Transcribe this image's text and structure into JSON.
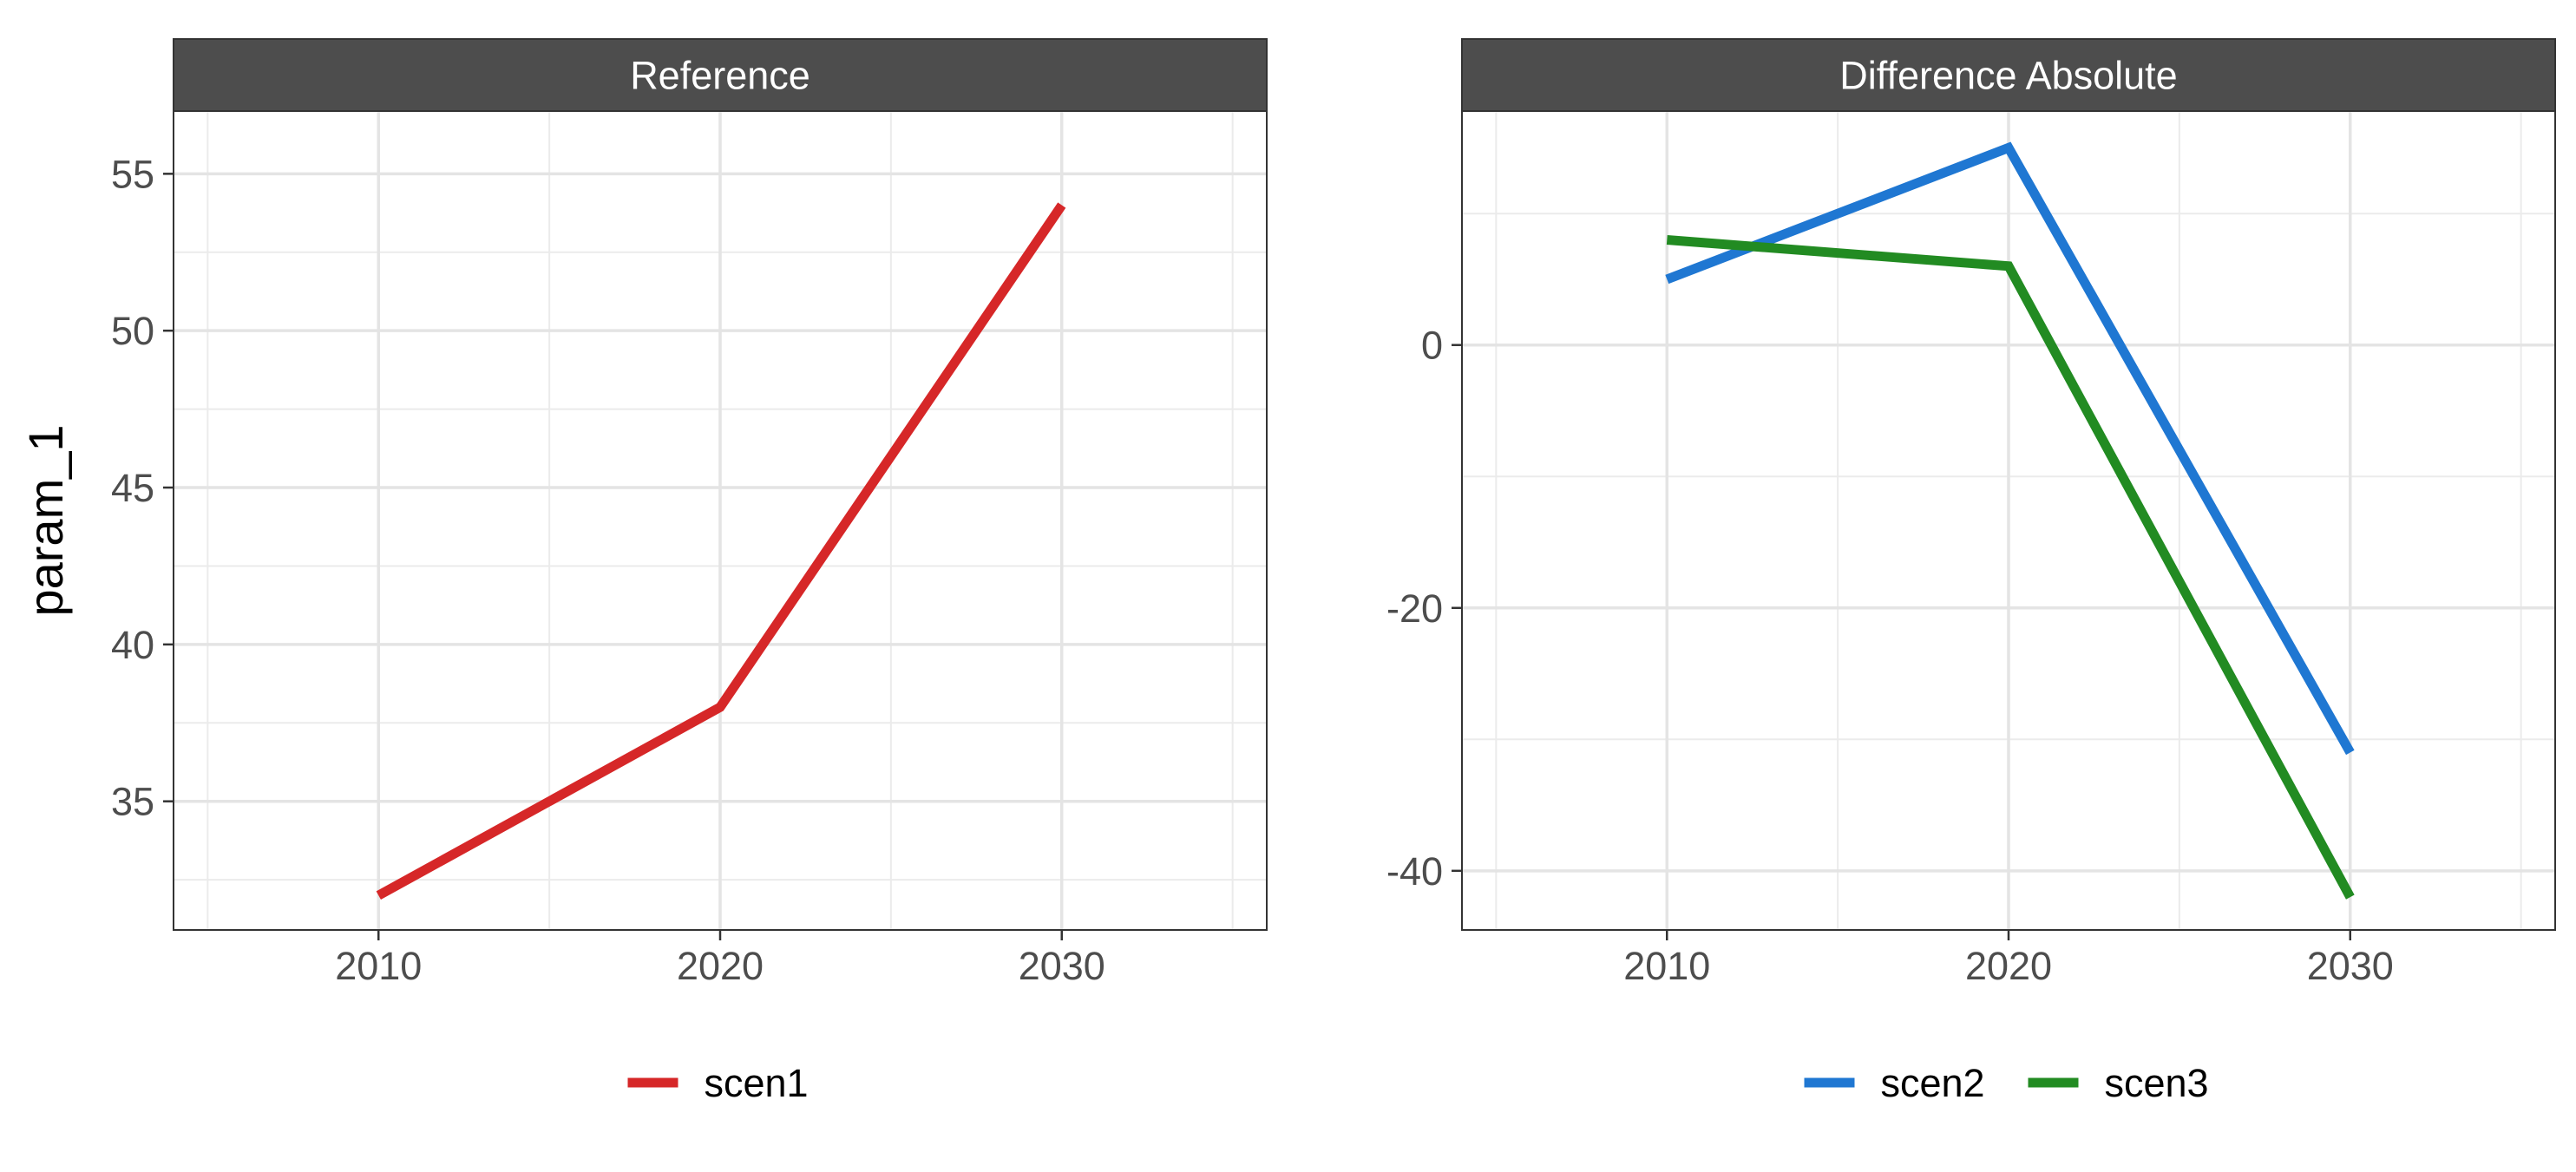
{
  "chart_data": {
    "type": "line",
    "ylabel": "param_1",
    "panels": [
      {
        "title": "Reference",
        "x": [
          2010,
          2020,
          2030
        ],
        "xlim": [
          2004,
          2036
        ],
        "ylim": [
          30.9,
          57.0
        ],
        "yticks": [
          35,
          40,
          45,
          50,
          55
        ],
        "ytick_labels": [
          "35",
          "40",
          "45",
          "50",
          "55"
        ],
        "xticks": [
          2010,
          2020,
          2030
        ],
        "xtick_labels": [
          "2010",
          "2020",
          "2030"
        ],
        "grid": true,
        "series": [
          {
            "name": "scen1",
            "color": "#d62728",
            "values": [
              32,
              38,
              54
            ]
          }
        ],
        "legend": {
          "position": "bottom",
          "entries": [
            "scen1"
          ]
        }
      },
      {
        "title": "Difference Absolute",
        "x": [
          2010,
          2020,
          2030
        ],
        "xlim": [
          2004,
          2036
        ],
        "ylim": [
          -44.5,
          17.8
        ],
        "yticks": [
          -40,
          -20,
          0
        ],
        "ytick_labels": [
          "-40",
          "-20",
          "0"
        ],
        "xticks": [
          2010,
          2020,
          2030
        ],
        "xtick_labels": [
          "2010",
          "2020",
          "2030"
        ],
        "grid": true,
        "series": [
          {
            "name": "scen2",
            "color": "#1f77d2",
            "values": [
              5,
              15,
              -31
            ]
          },
          {
            "name": "scen3",
            "color": "#228b22",
            "values": [
              8,
              6,
              -42
            ]
          }
        ],
        "legend": {
          "position": "bottom",
          "entries": [
            "scen2",
            "scen3"
          ]
        }
      }
    ]
  }
}
